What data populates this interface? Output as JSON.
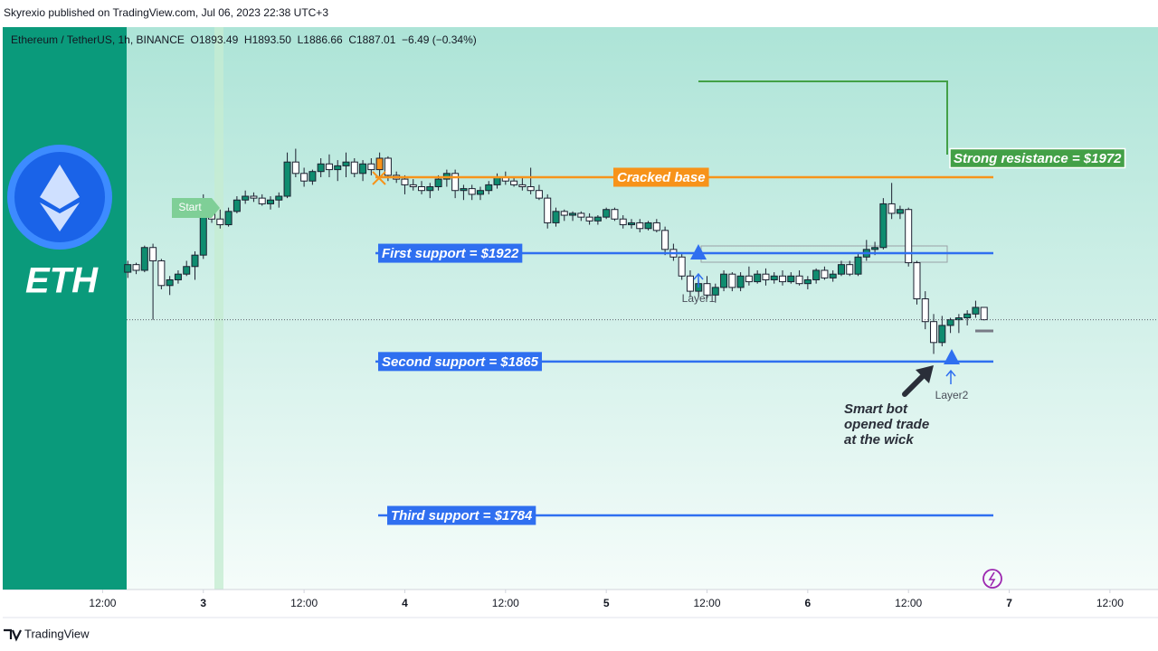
{
  "top_bar": "Skyrexio published on TradingView.com, Jul 06, 2023 22:38 UTC+3",
  "footer": "TradingView",
  "side_panel": {
    "ticker": "ETH"
  },
  "chart_data": {
    "type": "candlestick",
    "header": "Ethereum / TetherUS, 1h, BINANCE  O1893.49  H1893.50  L1886.66  C1887.01  −6.49 (−0.34%)",
    "up_color": "#0e8c6f",
    "down_color": "#ffffff",
    "xlim": [
      -23.9,
      113.4
    ],
    "ylim": [
      1745,
      2041
    ],
    "xticks": [
      {
        "value": -12,
        "label": "12:00"
      },
      {
        "value": 0,
        "label": "3"
      },
      {
        "value": 12,
        "label": "12:00"
      },
      {
        "value": 24,
        "label": "4"
      },
      {
        "value": 36,
        "label": "12:00"
      },
      {
        "value": 48,
        "label": "5"
      },
      {
        "value": 60,
        "label": "12:00"
      },
      {
        "value": 72,
        "label": "6"
      },
      {
        "value": 84,
        "label": "12:00"
      },
      {
        "value": 96,
        "label": "7"
      },
      {
        "value": 108,
        "label": "12:00"
      }
    ],
    "x": [
      -9,
      -8,
      -7,
      -6,
      -5,
      -4,
      -3,
      -2,
      -1,
      0,
      1,
      2,
      3,
      4,
      5,
      6,
      7,
      8,
      9,
      10,
      11,
      12,
      13,
      14,
      15,
      16,
      17,
      18,
      19,
      20,
      21,
      22,
      23,
      24,
      25,
      26,
      27,
      28,
      29,
      30,
      31,
      32,
      33,
      34,
      35,
      36,
      37,
      38,
      39,
      40,
      41,
      42,
      43,
      44,
      45,
      46,
      47,
      48,
      49,
      50,
      51,
      52,
      53,
      54,
      55,
      56,
      57,
      58,
      59,
      60,
      61,
      62,
      63,
      64,
      65,
      66,
      67,
      68,
      69,
      70,
      71,
      72,
      73,
      74,
      75,
      76,
      77,
      78,
      79,
      80,
      81,
      82,
      83,
      84,
      85,
      86,
      87,
      88,
      89,
      90,
      91,
      92,
      93
    ],
    "candles": [
      [
        1912,
        1918,
        1909,
        1916
      ],
      [
        1916,
        1917,
        1911,
        1913
      ],
      [
        1913,
        1926,
        1912,
        1925
      ],
      [
        1925,
        1927,
        1887,
        1918
      ],
      [
        1918,
        1919,
        1903,
        1905
      ],
      [
        1905,
        1910,
        1900,
        1908
      ],
      [
        1908,
        1913,
        1906,
        1911
      ],
      [
        1911,
        1918,
        1910,
        1915
      ],
      [
        1915,
        1923,
        1908,
        1921
      ],
      [
        1921,
        1953,
        1919,
        1944
      ],
      [
        1944,
        1950,
        1938,
        1940
      ],
      [
        1940,
        1945,
        1935,
        1937
      ],
      [
        1937,
        1946,
        1936,
        1944
      ],
      [
        1944,
        1952,
        1943,
        1950
      ],
      [
        1950,
        1955,
        1948,
        1952
      ],
      [
        1952,
        1954,
        1949,
        1951
      ],
      [
        1951,
        1953,
        1947,
        1948
      ],
      [
        1948,
        1952,
        1945,
        1950
      ],
      [
        1950,
        1954,
        1946,
        1952
      ],
      [
        1952,
        1975,
        1951,
        1970
      ],
      [
        1970,
        1977,
        1962,
        1964
      ],
      [
        1964,
        1967,
        1957,
        1960
      ],
      [
        1960,
        1966,
        1958,
        1965
      ],
      [
        1965,
        1972,
        1962,
        1969
      ],
      [
        1969,
        1974,
        1962,
        1966
      ],
      [
        1966,
        1971,
        1960,
        1968
      ],
      [
        1968,
        1975,
        1962,
        1970
      ],
      [
        1970,
        1972,
        1962,
        1964
      ],
      [
        1964,
        1971,
        1960,
        1969
      ],
      [
        1969,
        1972,
        1963,
        1966
      ],
      [
        1966,
        1975,
        1962,
        1972
      ],
      [
        1972,
        1973,
        1960,
        1963
      ],
      [
        1963,
        1965,
        1959,
        1961
      ],
      [
        1961,
        1963,
        1953,
        1958
      ],
      [
        1958,
        1961,
        1955,
        1957
      ],
      [
        1957,
        1960,
        1953,
        1955
      ],
      [
        1955,
        1959,
        1951,
        1957
      ],
      [
        1957,
        1963,
        1955,
        1961
      ],
      [
        1961,
        1966,
        1957,
        1964
      ],
      [
        1964,
        1966,
        1951,
        1955
      ],
      [
        1955,
        1958,
        1950,
        1956
      ],
      [
        1956,
        1958,
        1950,
        1953
      ],
      [
        1953,
        1957,
        1950,
        1955
      ],
      [
        1955,
        1960,
        1953,
        1958
      ],
      [
        1958,
        1964,
        1956,
        1962
      ],
      [
        1962,
        1965,
        1958,
        1960
      ],
      [
        1960,
        1962,
        1957,
        1958
      ],
      [
        1958,
        1962,
        1955,
        1957
      ],
      [
        1957,
        1967,
        1953,
        1955
      ],
      [
        1955,
        1958,
        1950,
        1951
      ],
      [
        1951,
        1953,
        1935,
        1938
      ],
      [
        1938,
        1946,
        1936,
        1944
      ],
      [
        1944,
        1945,
        1939,
        1942
      ],
      [
        1942,
        1944,
        1939,
        1943
      ],
      [
        1943,
        1944,
        1939,
        1941
      ],
      [
        1941,
        1943,
        1937,
        1939
      ],
      [
        1939,
        1942,
        1937,
        1941
      ],
      [
        1941,
        1946,
        1940,
        1945
      ],
      [
        1945,
        1946,
        1939,
        1940
      ],
      [
        1940,
        1942,
        1935,
        1937
      ],
      [
        1937,
        1940,
        1935,
        1938
      ],
      [
        1938,
        1940,
        1933,
        1935
      ],
      [
        1935,
        1939,
        1934,
        1938
      ],
      [
        1938,
        1940,
        1933,
        1934
      ],
      [
        1934,
        1936,
        1921,
        1924
      ],
      [
        1924,
        1927,
        1918,
        1920
      ],
      [
        1920,
        1922,
        1908,
        1910
      ],
      [
        1910,
        1913,
        1899,
        1902
      ],
      [
        1902,
        1908,
        1899,
        1906
      ],
      [
        1906,
        1910,
        1898,
        1900
      ],
      [
        1900,
        1906,
        1896,
        1904
      ],
      [
        1904,
        1913,
        1902,
        1911
      ],
      [
        1911,
        1912,
        1902,
        1904
      ],
      [
        1904,
        1912,
        1902,
        1910
      ],
      [
        1910,
        1915,
        1905,
        1907
      ],
      [
        1907,
        1913,
        1906,
        1911
      ],
      [
        1911,
        1914,
        1905,
        1908
      ],
      [
        1908,
        1912,
        1906,
        1910
      ],
      [
        1910,
        1913,
        1905,
        1907
      ],
      [
        1907,
        1912,
        1906,
        1910
      ],
      [
        1910,
        1913,
        1905,
        1906
      ],
      [
        1906,
        1910,
        1903,
        1908
      ],
      [
        1908,
        1914,
        1906,
        1913
      ],
      [
        1913,
        1915,
        1908,
        1909
      ],
      [
        1909,
        1913,
        1907,
        1911
      ],
      [
        1911,
        1918,
        1910,
        1916
      ],
      [
        1916,
        1918,
        1910,
        1911
      ],
      [
        1911,
        1922,
        1910,
        1920
      ],
      [
        1920,
        1929,
        1918,
        1924
      ],
      [
        1924,
        1928,
        1921,
        1925
      ],
      [
        1925,
        1951,
        1924,
        1948
      ],
      [
        1948,
        1959,
        1940,
        1943
      ],
      [
        1943,
        1947,
        1940,
        1945
      ],
      [
        1945,
        1946,
        1915,
        1917
      ],
      [
        1917,
        1918,
        1895,
        1898
      ],
      [
        1898,
        1902,
        1882,
        1886
      ],
      [
        1886,
        1890,
        1869,
        1875
      ],
      [
        1875,
        1889,
        1873,
        1884
      ],
      [
        1884,
        1888,
        1880,
        1887
      ],
      [
        1887,
        1890,
        1880,
        1888
      ],
      [
        1888,
        1892,
        1884,
        1890
      ],
      [
        1890,
        1897,
        1888,
        1893.49
      ],
      [
        1893.49,
        1893.5,
        1886.66,
        1887.01
      ]
    ],
    "levels": [
      {
        "label": "Strong resistance = $1972",
        "value": 1972,
        "color": "#43a047"
      },
      {
        "label": "Cracked base",
        "value": 1962,
        "color": "#f7931a"
      },
      {
        "label": "First support = $1922",
        "value": 1922,
        "color": "#2f6ff0"
      },
      {
        "label": "Second support = $1865",
        "value": 1865,
        "color": "#2f6ff0"
      },
      {
        "label": "Third support = $1784",
        "value": 1784,
        "color": "#2f6ff0"
      }
    ],
    "annotations": {
      "start": "Start",
      "layer1": "Layer1",
      "layer2": "Layer2",
      "note": [
        "Smart bot",
        "opened trade",
        "at the wick"
      ]
    }
  }
}
